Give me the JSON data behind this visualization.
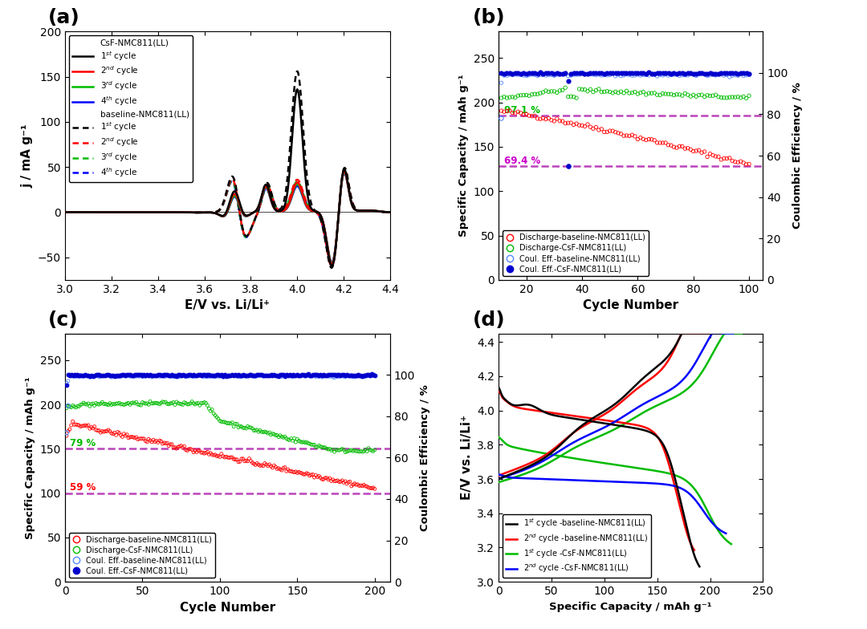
{
  "fig_size": [
    10.8,
    7.84
  ],
  "panel_labels": [
    "(a)",
    "(b)",
    "(c)",
    "(d)"
  ],
  "panel_label_fontsize": 18,
  "panel_label_fontweight": "bold",
  "a": {
    "xlabel": "E/V vs. Li/Li⁺",
    "ylabel": "j / mA g⁻¹",
    "xlim": [
      3.0,
      4.4
    ],
    "ylim": [
      -75,
      200
    ],
    "yticks": [
      -50,
      0,
      50,
      100,
      150,
      200
    ],
    "xticks": [
      3.0,
      3.2,
      3.4,
      3.6,
      3.8,
      4.0,
      4.2,
      4.4
    ],
    "csf_colors": [
      "#000000",
      "#ff0000",
      "#00bb00",
      "#0000ff"
    ],
    "base_colors": [
      "#000000",
      "#ff0000",
      "#00bb00",
      "#0000ff"
    ]
  },
  "b": {
    "xlabel": "Cycle Number",
    "ylabel_left": "Specific Capacity / mAh g⁻¹",
    "ylabel_right": "Coulombic Efficiency / %",
    "xlim": [
      10,
      105
    ],
    "ylim_left": [
      0,
      280
    ],
    "ylim_right": [
      0,
      120
    ],
    "yticks_left": [
      0,
      50,
      100,
      150,
      200,
      250
    ],
    "yticks_right": [
      0,
      20,
      40,
      60,
      80,
      100
    ],
    "xticks": [
      20,
      40,
      60,
      80,
      100
    ],
    "dashed_y1": 185,
    "dashed_y2": 128,
    "label_971": "97.1 %",
    "label_694": "69.4 %",
    "dashed_color": "#bb44bb",
    "legend": [
      "Discharge-baseline-NMC811(LL)",
      "Discharge-CsF-NMC811(LL)",
      "Coul. Eff.-baseline-NMC811(LL)",
      "Coul. Eff.-CsF-NMC811(LL)"
    ]
  },
  "c": {
    "xlabel": "Cycle Number",
    "ylabel_left": "Specific Capacity / mAh g⁻¹",
    "ylabel_right": "Coulombic Efficiency / %",
    "xlim": [
      0,
      210
    ],
    "ylim_left": [
      0,
      280
    ],
    "ylim_right": [
      0,
      120
    ],
    "yticks_left": [
      0,
      50,
      100,
      150,
      200,
      250
    ],
    "yticks_right": [
      0,
      20,
      40,
      60,
      80,
      100
    ],
    "xticks": [
      0,
      50,
      100,
      150,
      200
    ],
    "dashed_y1": 150,
    "dashed_y2": 100,
    "label_79": "79 %",
    "label_59": "59 %",
    "dashed_color": "#bb44bb",
    "legend": [
      "Discharge-baseline-NMC811(LL)",
      "Discharge-CsF-NMC811(LL)",
      "Coul. Eff.-baseline-NMC811(LL)",
      "Coul. Eff.-CsF-NMC811(LL)"
    ]
  },
  "d": {
    "xlabel": "Specific Capacity / mAh g⁻¹",
    "ylabel": "E/V vs. Li/Li⁺",
    "xlim": [
      0,
      250
    ],
    "ylim": [
      3.0,
      4.45
    ],
    "yticks": [
      3.0,
      3.2,
      3.4,
      3.6,
      3.8,
      4.0,
      4.2,
      4.4
    ],
    "xticks": [
      0,
      50,
      100,
      150,
      200,
      250
    ],
    "legend": [
      "1$^{st}$ cycle -baseline-NMC811(LL)",
      "2$^{nd}$ cycle -baseline-NMC811(LL)",
      "1$^{st}$ cycle -CsF-NMC811(LL)",
      "2$^{nd}$ cycle -CsF-NMC811(LL)"
    ],
    "colors": [
      "#000000",
      "#ff0000",
      "#00bb00",
      "#0000ff"
    ]
  }
}
